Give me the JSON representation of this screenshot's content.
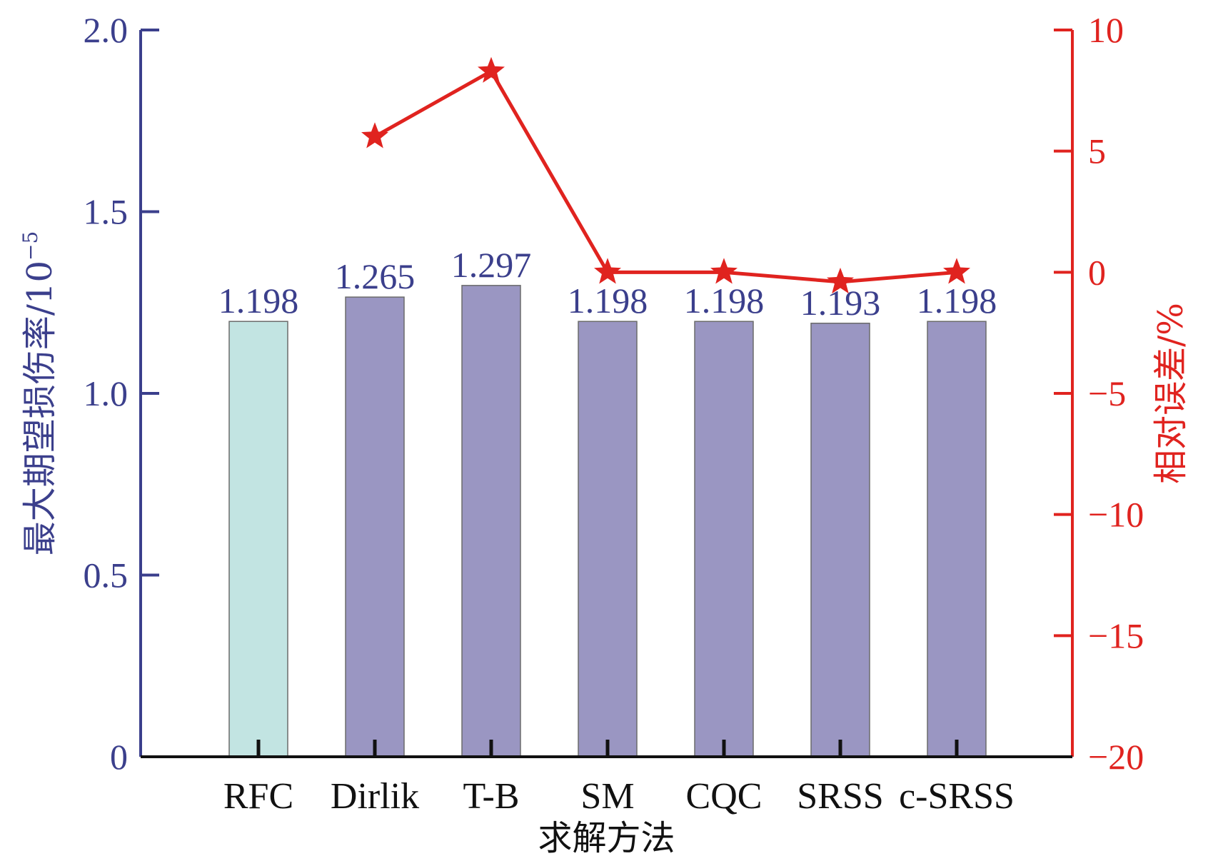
{
  "chart_data": {
    "type": "bar",
    "categories": [
      "RFC",
      "Dirlik",
      "T-B",
      "SM",
      "CQC",
      "SRSS",
      "c-SRSS"
    ],
    "xlabel": "求解方法",
    "series": [
      {
        "axis": "left",
        "type": "bar",
        "values": [
          1.198,
          1.265,
          1.297,
          1.198,
          1.198,
          1.193,
          1.198
        ],
        "data_labels": [
          "1.198",
          "1.265",
          "1.297",
          "1.198",
          "1.198",
          "1.193",
          "1.198"
        ],
        "colors": [
          "#c2e4e2",
          "#9a96c2",
          "#9a96c2",
          "#9a96c2",
          "#9a96c2",
          "#9a96c2",
          "#9a96c2"
        ]
      },
      {
        "axis": "right",
        "type": "line",
        "marker": "star",
        "color": "#e0231f",
        "values": [
          null,
          5.6,
          8.3,
          0.0,
          0.0,
          -0.4,
          0.0
        ]
      }
    ],
    "y_left": {
      "label": "最大期望损伤率/10",
      "label_exp": "−5",
      "lim": [
        0,
        2.0
      ],
      "ticks": [
        0,
        0.5,
        1.0,
        1.5,
        2.0
      ],
      "tick_labels": [
        "0",
        "0.5",
        "1.0",
        "1.5",
        "2.0"
      ],
      "color": "#3b3f8c"
    },
    "y_right": {
      "label": "相对误差/%",
      "lim": [
        -20,
        10
      ],
      "ticks": [
        -20,
        -15,
        -10,
        -5,
        0,
        5,
        10
      ],
      "tick_labels": [
        "−20",
        "−15",
        "−10",
        "−5",
        "0",
        "5",
        "10"
      ],
      "color": "#e0231f"
    },
    "grid": false,
    "legend": "none"
  }
}
